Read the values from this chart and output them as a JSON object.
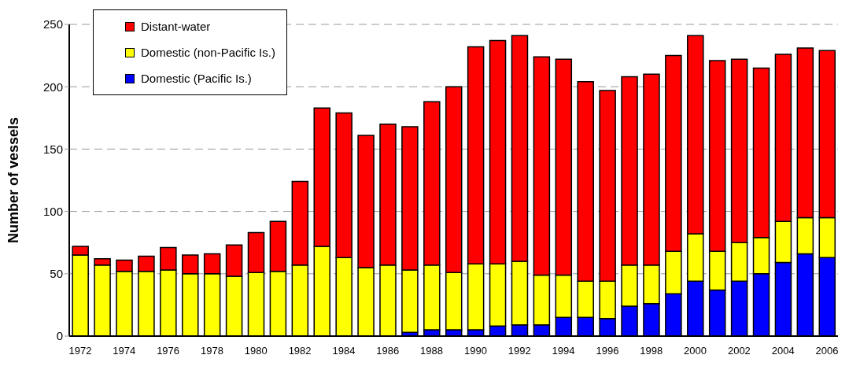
{
  "chart_data": {
    "type": "bar",
    "stacked": true,
    "ylabel": "Number of vessels",
    "categories": [
      "1972",
      null,
      "1974",
      null,
      "1976",
      null,
      "1978",
      null,
      "1980",
      null,
      "1982",
      null,
      "1984",
      null,
      "1986",
      null,
      "1988",
      null,
      "1990",
      null,
      "1992",
      null,
      "1994",
      null,
      "1996",
      null,
      "1998",
      null,
      "2000",
      null,
      "2002",
      null,
      "2004",
      null,
      "2006"
    ],
    "series": [
      {
        "name": "Domestic (Pacific Is.)",
        "color": "#0000ff",
        "values": [
          0,
          0,
          0,
          0,
          0,
          0,
          0,
          0,
          null,
          null,
          null,
          null,
          null,
          null,
          null,
          3,
          5,
          5,
          5,
          8,
          9,
          9,
          15,
          15,
          14,
          24,
          26,
          34,
          44,
          37,
          44,
          50,
          59,
          66,
          63
        ]
      },
      {
        "name": "Domestic (non-Pacific Is.)",
        "color": "#ffff00",
        "values": [
          65,
          57,
          52,
          52,
          53,
          50,
          50,
          48,
          51,
          52,
          57,
          72,
          63,
          55,
          57,
          50,
          52,
          46,
          53,
          50,
          51,
          40,
          34,
          29,
          30,
          33,
          31,
          34,
          38,
          31,
          31,
          29,
          33,
          29,
          32
        ]
      },
      {
        "name": "Distant-water",
        "color": "#ff0000",
        "values": [
          7,
          5,
          9,
          12,
          18,
          15,
          16,
          25,
          32,
          40,
          67,
          111,
          116,
          106,
          113,
          115,
          131,
          149,
          174,
          179,
          181,
          175,
          173,
          160,
          153,
          151,
          153,
          157,
          159,
          153,
          147,
          136,
          134,
          136,
          134
        ]
      }
    ],
    "ylim": [
      0,
      250
    ],
    "yticks": [
      0,
      50,
      100,
      150,
      200,
      250
    ],
    "grid": "y",
    "legend": "top left"
  }
}
